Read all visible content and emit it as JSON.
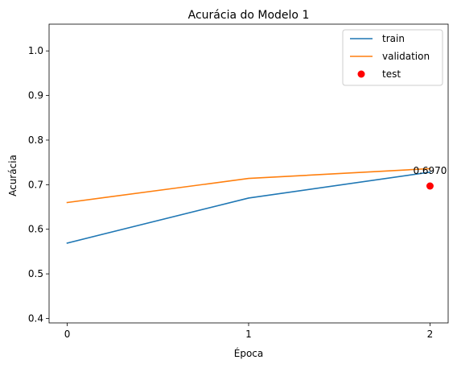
{
  "chart_data": {
    "type": "line",
    "title": "Acurácia do Modelo 1",
    "xlabel": "Época",
    "ylabel": "Acurácia",
    "x": [
      0,
      1,
      2
    ],
    "xticks": [
      "0",
      "1",
      "2"
    ],
    "yticks": [
      "0.4",
      "0.5",
      "0.6",
      "0.7",
      "0.8",
      "0.9",
      "1.0"
    ],
    "xlim": [
      -0.1,
      2.1
    ],
    "ylim": [
      0.39,
      1.06
    ],
    "grid": false,
    "legend_position": "top-right",
    "series": [
      {
        "name": "train",
        "type": "line",
        "color": "#1f77b4",
        "x": [
          0,
          1,
          2
        ],
        "values": [
          0.569,
          0.67,
          0.728
        ]
      },
      {
        "name": "validation",
        "type": "line",
        "color": "#ff7f0e",
        "x": [
          0,
          1,
          2
        ],
        "values": [
          0.66,
          0.714,
          0.736
        ]
      },
      {
        "name": "test",
        "type": "scatter",
        "color": "#ff0000",
        "x": [
          2
        ],
        "values": [
          0.697
        ]
      }
    ],
    "annotations": [
      {
        "text": "0.6970",
        "x": 2,
        "y": 0.697
      }
    ]
  }
}
